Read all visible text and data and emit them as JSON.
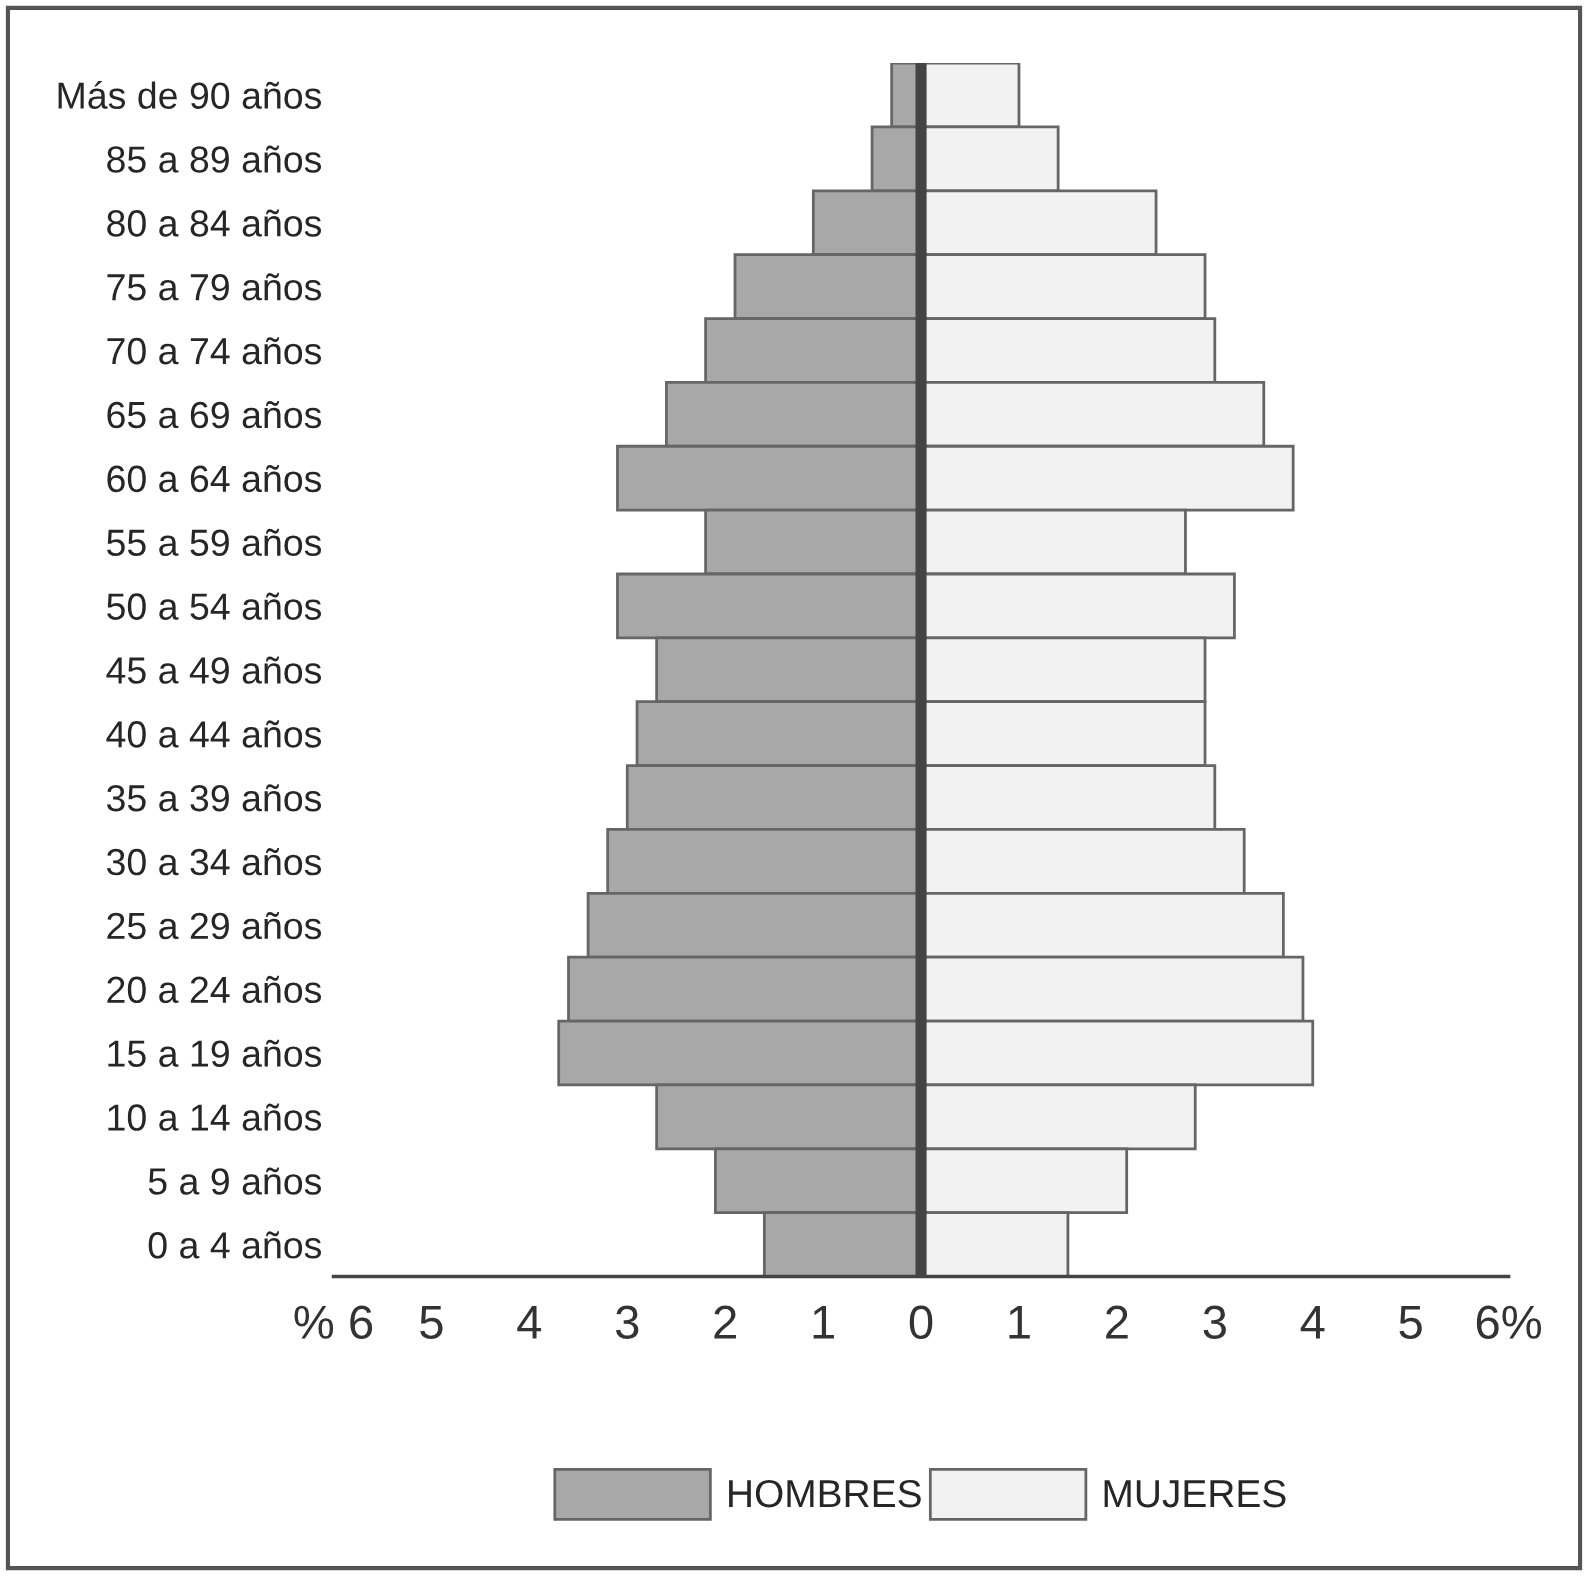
{
  "chart_data": {
    "type": "bar",
    "orientation": "horizontal",
    "categories": [
      "Más de 90 años",
      "85 a 89 años",
      "80 a 84 años",
      "75 a 79 años",
      "70 a 74 años",
      "65 a 69 años",
      "60 a 64 años",
      "55 a 59 años",
      "50 a 54 años",
      "45 a 49 años",
      "40 a 44 años",
      "35 a 39 años",
      "30 a 34 años",
      "25 a 29 años",
      "20 a 24 años",
      "15 a 19 años",
      "10 a 14 años",
      "5 a 9 años",
      "0 a 4 años"
    ],
    "series": [
      {
        "name": "HOMBRES",
        "color": "#a8a8a8",
        "values": [
          -0.3,
          -0.5,
          -1.1,
          -1.9,
          -2.2,
          -2.6,
          -3.1,
          -2.2,
          -3.1,
          -2.7,
          -2.9,
          -3.0,
          -3.2,
          -3.4,
          -3.6,
          -3.7,
          -2.7,
          -2.1,
          -1.6
        ]
      },
      {
        "name": "MUJERES",
        "color": "#f2f2f2",
        "values": [
          1.0,
          1.4,
          2.4,
          2.9,
          3.0,
          3.5,
          3.8,
          2.7,
          3.2,
          2.9,
          2.9,
          3.0,
          3.3,
          3.7,
          3.9,
          4.0,
          2.8,
          2.1,
          1.5
        ]
      }
    ],
    "xlim": [
      -6,
      6
    ],
    "xticks": [
      {
        "value": -6,
        "label": "% 6"
      },
      {
        "value": -5,
        "label": "5"
      },
      {
        "value": -4,
        "label": "4"
      },
      {
        "value": -3,
        "label": "3"
      },
      {
        "value": -2,
        "label": "2"
      },
      {
        "value": -1,
        "label": "1"
      },
      0,
      1,
      2,
      3,
      4,
      5,
      {
        "value": 6,
        "label": "6%"
      }
    ],
    "ref_lines": [
      {
        "axis": "x",
        "value": 0,
        "color": "#444444"
      }
    ],
    "stacked": true,
    "grid": false,
    "legend": "bottom"
  }
}
